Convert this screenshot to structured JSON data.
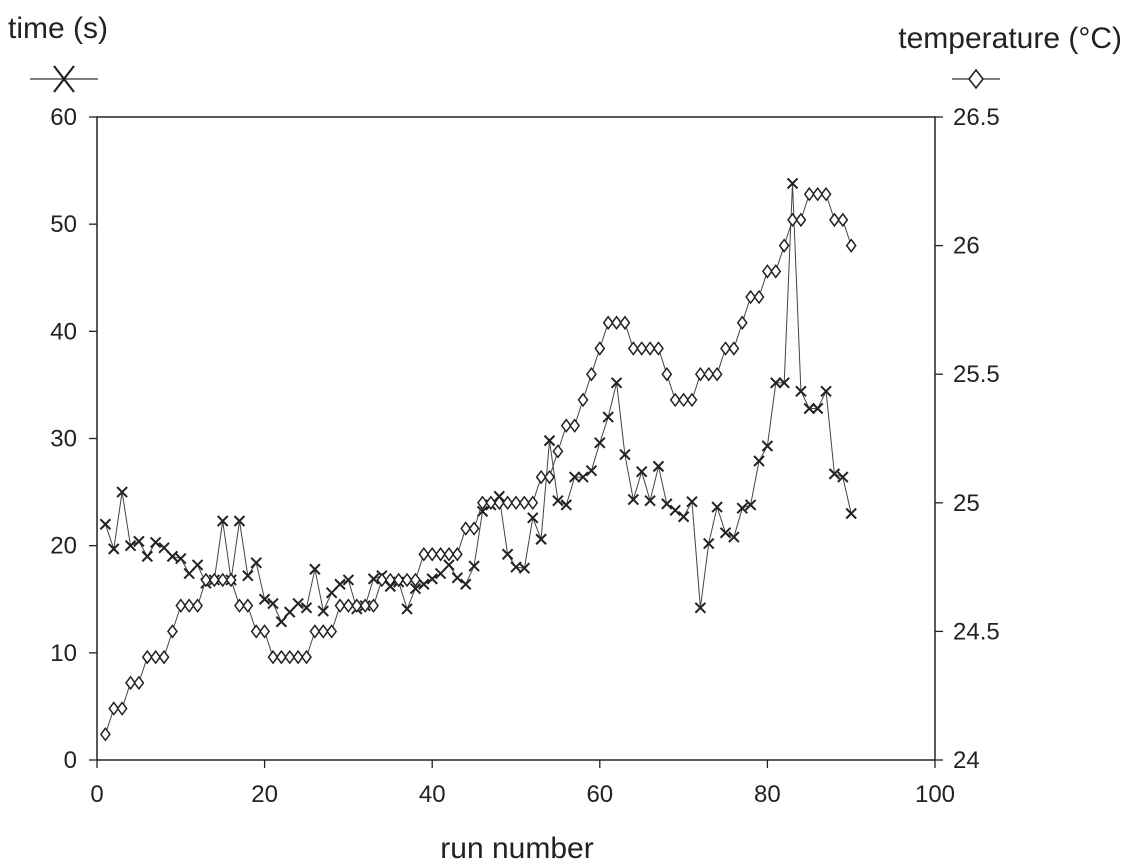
{
  "chart_data": {
    "type": "line",
    "xlabel": "run number",
    "ylabel_left": "time (s)",
    "ylabel_right": "temperature (°C)",
    "xlim": [
      0,
      100
    ],
    "ylim_left": [
      0,
      60
    ],
    "ylim_right": [
      24,
      26.5
    ],
    "x_ticks": [
      "0",
      "20",
      "40",
      "60",
      "80",
      "100"
    ],
    "y_ticks_left": [
      "0",
      "10",
      "20",
      "30",
      "40",
      "50",
      "60"
    ],
    "y_ticks_right": [
      "24",
      "24.5",
      "25",
      "25.5",
      "26",
      "26.5"
    ],
    "grid": false,
    "series": [
      {
        "axis": "left",
        "marker": "x",
        "x": [
          1,
          2,
          3,
          4,
          5,
          6,
          7,
          8,
          9,
          10,
          11,
          12,
          13,
          14,
          15,
          16,
          17,
          18,
          19,
          20,
          21,
          22,
          23,
          24,
          25,
          26,
          27,
          28,
          29,
          30,
          31,
          32,
          33,
          34,
          35,
          36,
          37,
          38,
          39,
          40,
          41,
          42,
          43,
          44,
          45,
          46,
          47,
          48,
          49,
          50,
          51,
          52,
          53,
          54,
          55,
          56,
          57,
          58,
          59,
          60,
          61,
          62,
          63,
          64,
          65,
          66,
          67,
          68,
          69,
          70,
          71,
          72,
          73,
          74,
          75,
          76,
          77,
          78,
          79,
          80,
          81,
          82,
          83,
          84,
          85,
          86,
          87,
          88,
          89,
          90
        ],
        "values": [
          22,
          19.7,
          25,
          20,
          20.4,
          19,
          20.3,
          19.8,
          19,
          18.8,
          17.4,
          18.2,
          16.5,
          16.8,
          22.3,
          16.8,
          22.3,
          17.2,
          18.4,
          15,
          14.6,
          12.9,
          13.8,
          14.6,
          14.2,
          17.8,
          13.9,
          15.6,
          16.4,
          16.8,
          14.1,
          14.4,
          16.9,
          17.2,
          16.2,
          16.6,
          14.1,
          16,
          16.4,
          16.9,
          17.4,
          18.2,
          17,
          16.4,
          18.1,
          23.2,
          23.8,
          24.6,
          19.2,
          18,
          17.9,
          22.6,
          20.6,
          29.8,
          24.2,
          23.8,
          26.4,
          26.4,
          27,
          29.6,
          32,
          35.2,
          28.5,
          24.3,
          26.9,
          24.2,
          27.4,
          23.9,
          23.3,
          22.7,
          24.1,
          14.2,
          20.2,
          23.6,
          21.2,
          20.8,
          23.5,
          23.8,
          27.9,
          29.3,
          35.2,
          35.2,
          53.8,
          34.4,
          32.8,
          32.8,
          34.4,
          26.7,
          26.4,
          23
        ]
      },
      {
        "axis": "right",
        "marker": "diamond",
        "x": [
          1,
          2,
          3,
          4,
          5,
          6,
          7,
          8,
          9,
          10,
          11,
          12,
          13,
          14,
          15,
          16,
          17,
          18,
          19,
          20,
          21,
          22,
          23,
          24,
          25,
          26,
          27,
          28,
          29,
          30,
          31,
          32,
          33,
          34,
          35,
          36,
          37,
          38,
          39,
          40,
          41,
          42,
          43,
          44,
          45,
          46,
          47,
          48,
          49,
          50,
          51,
          52,
          53,
          54,
          55,
          56,
          57,
          58,
          59,
          60,
          61,
          62,
          63,
          64,
          65,
          66,
          67,
          68,
          69,
          70,
          71,
          72,
          73,
          74,
          75,
          76,
          77,
          78,
          79,
          80,
          81,
          82,
          83,
          84,
          85,
          86,
          87,
          88,
          89,
          90
        ],
        "values": [
          24.1,
          24.2,
          24.2,
          24.3,
          24.3,
          24.4,
          24.4,
          24.4,
          24.5,
          24.6,
          24.6,
          24.6,
          24.7,
          24.7,
          24.7,
          24.7,
          24.6,
          24.6,
          24.5,
          24.5,
          24.4,
          24.4,
          24.4,
          24.4,
          24.4,
          24.5,
          24.5,
          24.5,
          24.6,
          24.6,
          24.6,
          24.6,
          24.6,
          24.7,
          24.7,
          24.7,
          24.7,
          24.7,
          24.8,
          24.8,
          24.8,
          24.8,
          24.8,
          24.9,
          24.9,
          25,
          25,
          25,
          25,
          25,
          25,
          25,
          25.1,
          25.1,
          25.2,
          25.3,
          25.3,
          25.4,
          25.5,
          25.6,
          25.7,
          25.7,
          25.7,
          25.6,
          25.6,
          25.6,
          25.6,
          25.5,
          25.4,
          25.4,
          25.4,
          25.5,
          25.5,
          25.5,
          25.6,
          25.6,
          25.7,
          25.8,
          25.8,
          25.9,
          25.9,
          26,
          26.1,
          26.1,
          26.2,
          26.2,
          26.2,
          26.1,
          26.1,
          26
        ]
      }
    ]
  }
}
